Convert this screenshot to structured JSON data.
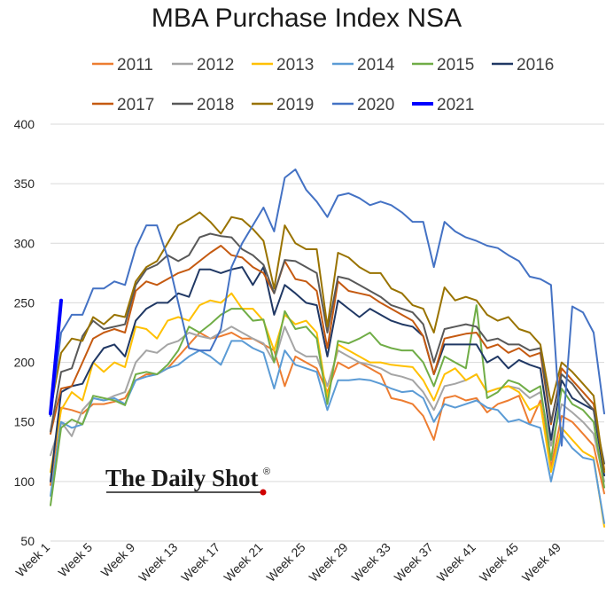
{
  "chart_data": {
    "type": "line",
    "title": "MBA Purchase Index NSA",
    "xlabel": "",
    "ylabel": "",
    "ylim": [
      50,
      400
    ],
    "yticks": [
      50,
      100,
      150,
      200,
      250,
      300,
      350,
      400
    ],
    "grid": "horizontal",
    "legend_position": "top",
    "x_tick_labels": [
      "Week 1",
      "Week 5",
      "Week 9",
      "Week 13",
      "Week 17",
      "Week 21",
      "Week 25",
      "Week 29",
      "Week 33",
      "Week 37",
      "Week 41",
      "Week 45",
      "Week 49"
    ],
    "x_tick_weeks": [
      1,
      5,
      9,
      13,
      17,
      21,
      25,
      29,
      33,
      37,
      41,
      45,
      49
    ],
    "x_range": [
      1,
      53
    ],
    "series": [
      {
        "name": "2011",
        "color": "#ED7D31",
        "width": 2,
        "values": [
          97,
          162,
          160,
          157,
          165,
          165,
          167,
          170,
          185,
          190,
          190,
          195,
          205,
          215,
          225,
          220,
          222,
          225,
          220,
          220,
          215,
          210,
          180,
          205,
          200,
          195,
          175,
          200,
          195,
          200,
          195,
          190,
          170,
          168,
          165,
          155,
          135,
          170,
          172,
          168,
          170,
          158,
          165,
          168,
          172,
          148,
          168,
          112,
          155,
          150,
          140,
          130,
          90
        ]
      },
      {
        "name": "2012",
        "color": "#A5A5A5",
        "width": 2,
        "values": [
          122,
          150,
          138,
          160,
          170,
          168,
          172,
          175,
          200,
          210,
          208,
          215,
          218,
          225,
          222,
          220,
          225,
          230,
          225,
          220,
          216,
          200,
          230,
          210,
          205,
          205,
          180,
          210,
          205,
          200,
          198,
          195,
          190,
          188,
          185,
          175,
          160,
          180,
          182,
          185,
          190,
          175,
          178,
          180,
          178,
          170,
          175,
          130,
          165,
          158,
          150,
          140,
          100
        ]
      },
      {
        "name": "2013",
        "color": "#FFC000",
        "width": 2,
        "values": [
          108,
          160,
          175,
          168,
          200,
          192,
          200,
          196,
          230,
          228,
          220,
          235,
          238,
          235,
          248,
          252,
          250,
          258,
          245,
          245,
          235,
          210,
          240,
          232,
          235,
          225,
          170,
          215,
          210,
          205,
          200,
          200,
          198,
          197,
          196,
          185,
          168,
          190,
          195,
          185,
          190,
          175,
          178,
          180,
          175,
          160,
          165,
          108,
          145,
          135,
          125,
          120,
          62
        ]
      },
      {
        "name": "2014",
        "color": "#5B9BD5",
        "width": 2,
        "values": [
          88,
          150,
          145,
          148,
          170,
          168,
          170,
          165,
          185,
          188,
          190,
          195,
          198,
          205,
          210,
          205,
          198,
          218,
          218,
          212,
          208,
          178,
          210,
          198,
          195,
          192,
          160,
          185,
          185,
          186,
          185,
          182,
          178,
          175,
          176,
          170,
          150,
          165,
          162,
          165,
          168,
          162,
          160,
          150,
          152,
          148,
          145,
          100,
          140,
          128,
          120,
          118,
          65
        ]
      },
      {
        "name": "2015",
        "color": "#70AD47",
        "width": 2,
        "values": [
          80,
          145,
          152,
          148,
          172,
          170,
          168,
          164,
          190,
          192,
          190,
          198,
          210,
          230,
          225,
          232,
          240,
          245,
          245,
          235,
          236,
          200,
          243,
          228,
          230,
          220,
          165,
          218,
          216,
          220,
          225,
          215,
          212,
          210,
          210,
          200,
          180,
          205,
          200,
          195,
          248,
          170,
          175,
          185,
          182,
          175,
          180,
          118,
          178,
          165,
          160,
          150,
          95
        ]
      },
      {
        "name": "2016",
        "color": "#203864",
        "width": 2,
        "values": [
          100,
          175,
          180,
          182,
          200,
          212,
          215,
          205,
          235,
          245,
          250,
          250,
          258,
          255,
          278,
          278,
          275,
          278,
          280,
          265,
          280,
          240,
          265,
          258,
          250,
          248,
          205,
          252,
          245,
          238,
          245,
          240,
          235,
          232,
          230,
          222,
          190,
          215,
          215,
          215,
          215,
          200,
          205,
          195,
          202,
          198,
          195,
          135,
          185,
          170,
          165,
          160,
          105
        ]
      },
      {
        "name": "2017",
        "color": "#C55A11",
        "width": 2,
        "values": [
          140,
          178,
          180,
          200,
          220,
          225,
          228,
          225,
          260,
          268,
          265,
          270,
          275,
          278,
          285,
          292,
          298,
          290,
          288,
          280,
          275,
          258,
          285,
          270,
          268,
          260,
          212,
          268,
          260,
          258,
          256,
          250,
          245,
          240,
          235,
          222,
          190,
          220,
          222,
          224,
          225,
          212,
          215,
          208,
          212,
          205,
          208,
          148,
          195,
          185,
          175,
          165,
          110
        ]
      },
      {
        "name": "2018",
        "color": "#595959",
        "width": 2,
        "values": [
          142,
          192,
          195,
          222,
          235,
          228,
          230,
          232,
          265,
          278,
          282,
          290,
          285,
          290,
          305,
          308,
          306,
          305,
          295,
          290,
          282,
          258,
          286,
          285,
          280,
          275,
          225,
          272,
          270,
          265,
          260,
          255,
          248,
          245,
          242,
          232,
          200,
          228,
          230,
          232,
          230,
          218,
          220,
          215,
          215,
          210,
          212,
          150,
          190,
          182,
          170,
          160,
          115
        ]
      },
      {
        "name": "2019",
        "color": "#997300",
        "width": 2,
        "values": [
          160,
          208,
          220,
          218,
          238,
          232,
          240,
          238,
          268,
          280,
          285,
          300,
          315,
          320,
          326,
          318,
          308,
          322,
          320,
          312,
          302,
          262,
          315,
          300,
          295,
          295,
          230,
          292,
          288,
          280,
          275,
          275,
          262,
          258,
          248,
          245,
          225,
          263,
          252,
          255,
          252,
          240,
          235,
          238,
          228,
          225,
          215,
          165,
          200,
          192,
          182,
          172,
          108
        ]
      },
      {
        "name": "2020",
        "color": "#4472C4",
        "width": 2,
        "values": [
          155,
          225,
          240,
          240,
          262,
          262,
          268,
          265,
          296,
          315,
          315,
          288,
          250,
          212,
          210,
          210,
          228,
          280,
          300,
          315,
          330,
          310,
          355,
          362,
          345,
          335,
          322,
          340,
          342,
          338,
          332,
          335,
          332,
          326,
          318,
          318,
          280,
          318,
          310,
          305,
          302,
          298,
          296,
          290,
          285,
          272,
          270,
          265,
          130,
          247,
          242,
          225,
          157
        ]
      },
      {
        "name": "2021",
        "color": "#0000FF",
        "width": 4,
        "values": [
          157,
          252
        ]
      }
    ]
  },
  "watermark": {
    "text": "The Daily Shot",
    "mark": "®",
    "dot_color": "#D00000"
  }
}
